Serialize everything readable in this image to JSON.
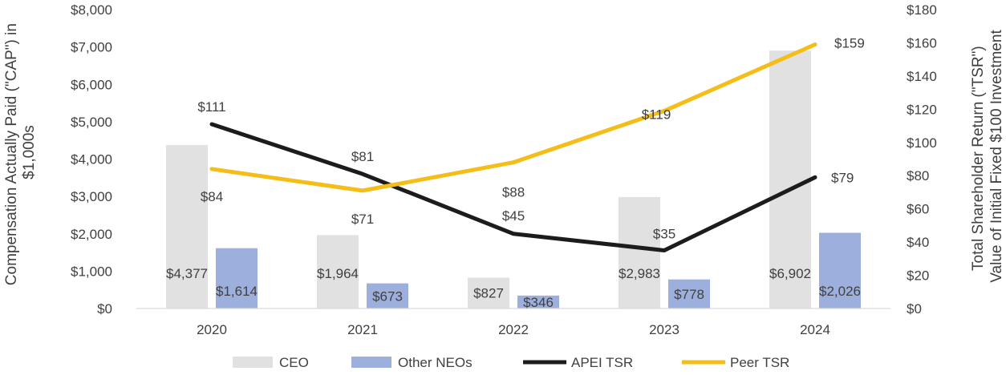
{
  "chart_data": {
    "type": "bar",
    "categories": [
      "2020",
      "2021",
      "2022",
      "2023",
      "2024"
    ],
    "bar_series": [
      {
        "name": "CEO",
        "color": "#e0e1e0",
        "values": [
          4377,
          1964,
          827,
          2983,
          6902
        ],
        "labels": [
          "$4,377",
          "$1,964",
          "$827",
          "$2,983",
          "$6,902"
        ]
      },
      {
        "name": "Other NEOs",
        "color": "#9db0dd",
        "values": [
          1614,
          673,
          346,
          778,
          2026
        ],
        "labels": [
          "$1,614",
          "$673",
          "$346",
          "$778",
          "$2,026"
        ]
      }
    ],
    "line_series": [
      {
        "name": "APEI TSR",
        "color": "#1c1c1c",
        "values": [
          111,
          81,
          45,
          35,
          79
        ],
        "labels": [
          "$111",
          "$81",
          "$45",
          "$35",
          "$79"
        ]
      },
      {
        "name": "Peer TSR",
        "color": "#f5bd17",
        "values": [
          84,
          71,
          88,
          119,
          159
        ],
        "labels": [
          "$84",
          "$71",
          "$88",
          "$119",
          "$159"
        ]
      }
    ],
    "y_left": {
      "label_line1": "Compensation Actually Paid (\"CAP\") in",
      "label_line2": "$1,000s",
      "range": [
        0,
        8000
      ],
      "ticks": [
        0,
        1000,
        2000,
        3000,
        4000,
        5000,
        6000,
        7000,
        8000
      ],
      "tick_labels": [
        "$0",
        "$1,000",
        "$2,000",
        "$3,000",
        "$4,000",
        "$5,000",
        "$6,000",
        "$7,000",
        "$8,000"
      ]
    },
    "y_right": {
      "label_line1": "Total Shareholder Return (\"TSR\")",
      "label_line2": "Value of Initial Fixed $100 Investment",
      "range": [
        0,
        180
      ],
      "ticks": [
        0,
        20,
        40,
        60,
        80,
        100,
        120,
        140,
        160,
        180
      ],
      "tick_labels": [
        "$0",
        "$20",
        "$40",
        "$60",
        "$80",
        "$100",
        "$120",
        "$140",
        "$160",
        "$180"
      ]
    },
    "legend": {
      "position": "bottom",
      "items": [
        "CEO",
        "Other NEOs",
        "APEI TSR",
        "Peer TSR"
      ]
    },
    "grid": false
  }
}
